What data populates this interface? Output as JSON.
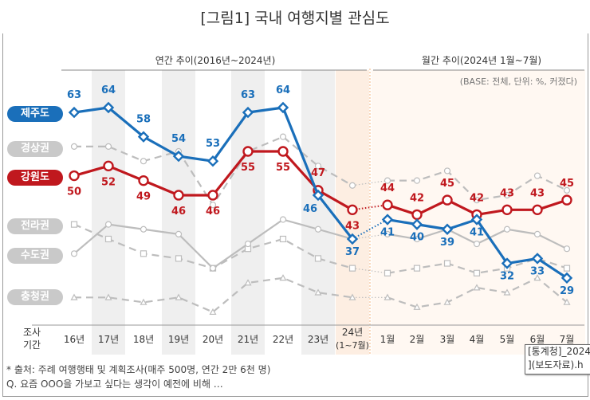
{
  "title": "[그림1] 국내 여행지별 관심도",
  "section_annual": "연간 추이(2016년~2024년)",
  "section_monthly": "월간 추이(2024년 1월~7월)",
  "base_note": "(BASE: 전체, 단위: %, 커졌다)",
  "axis_label": "조사\n기간",
  "footnotes": [
    "* 출처: 주례 여행행태 및 계획조사(매주 500명, 연간 2만 6천 명)",
    "Q. 요즘 OOO을 가보고 싶다는 생각이 예전에 비해 …"
  ],
  "tooltip": [
    "[통계청]_2024",
    "](보도자료).h"
  ],
  "colors": {
    "jeju": "#1a6fba",
    "gangwon": "#c0181e",
    "gray": "#bdbdbd",
    "band": "#efefef",
    "highlight": "#fdeee2"
  },
  "chart_data": {
    "type": "line",
    "categories": [
      "16년",
      "17년",
      "18년",
      "19년",
      "20년",
      "21년",
      "22년",
      "23년",
      "24년\n(1~7월)",
      "1월",
      "2월",
      "3월",
      "4월",
      "5월",
      "6월",
      "7월"
    ],
    "ylim": [
      20,
      70
    ],
    "series": [
      {
        "name": "제주도",
        "key": "jeju",
        "marker": "diamond",
        "style": "solid",
        "labeled": true,
        "values": [
          63,
          64,
          58,
          54,
          53,
          63,
          64,
          46,
          37,
          41,
          40,
          39,
          41,
          32,
          33,
          29
        ]
      },
      {
        "name": "경상권",
        "key": "gray",
        "marker": "circle",
        "style": "dashed",
        "labeled": false,
        "values": [
          56,
          56,
          53,
          55,
          44,
          55,
          58,
          52,
          48,
          49,
          49,
          51,
          45,
          46,
          50,
          47
        ]
      },
      {
        "name": "강원도",
        "key": "gangwon",
        "marker": "circle",
        "style": "solid",
        "labeled": true,
        "values": [
          50,
          52,
          49,
          46,
          46,
          55,
          55,
          47,
          43,
          44,
          42,
          45,
          42,
          43,
          43,
          45
        ]
      },
      {
        "name": "전라권",
        "key": "gray",
        "marker": "circle",
        "style": "solid-thin",
        "labeled": false,
        "values": [
          34,
          40,
          39,
          38,
          31,
          36,
          41,
          39,
          37,
          38,
          37,
          39,
          36,
          39,
          38,
          35
        ]
      },
      {
        "name": "수도권",
        "key": "gray",
        "marker": "square",
        "style": "dashed",
        "labeled": false,
        "values": [
          40,
          37,
          34,
          33,
          31,
          35,
          37,
          33,
          31,
          30,
          31,
          32,
          30,
          31,
          33,
          31
        ]
      },
      {
        "name": "충청권",
        "key": "gray",
        "marker": "triangle",
        "style": "dashed-light",
        "labeled": false,
        "values": [
          25,
          25,
          24,
          25,
          22,
          28,
          29,
          26,
          25,
          25,
          23,
          24,
          27,
          26,
          29,
          24
        ]
      }
    ]
  }
}
